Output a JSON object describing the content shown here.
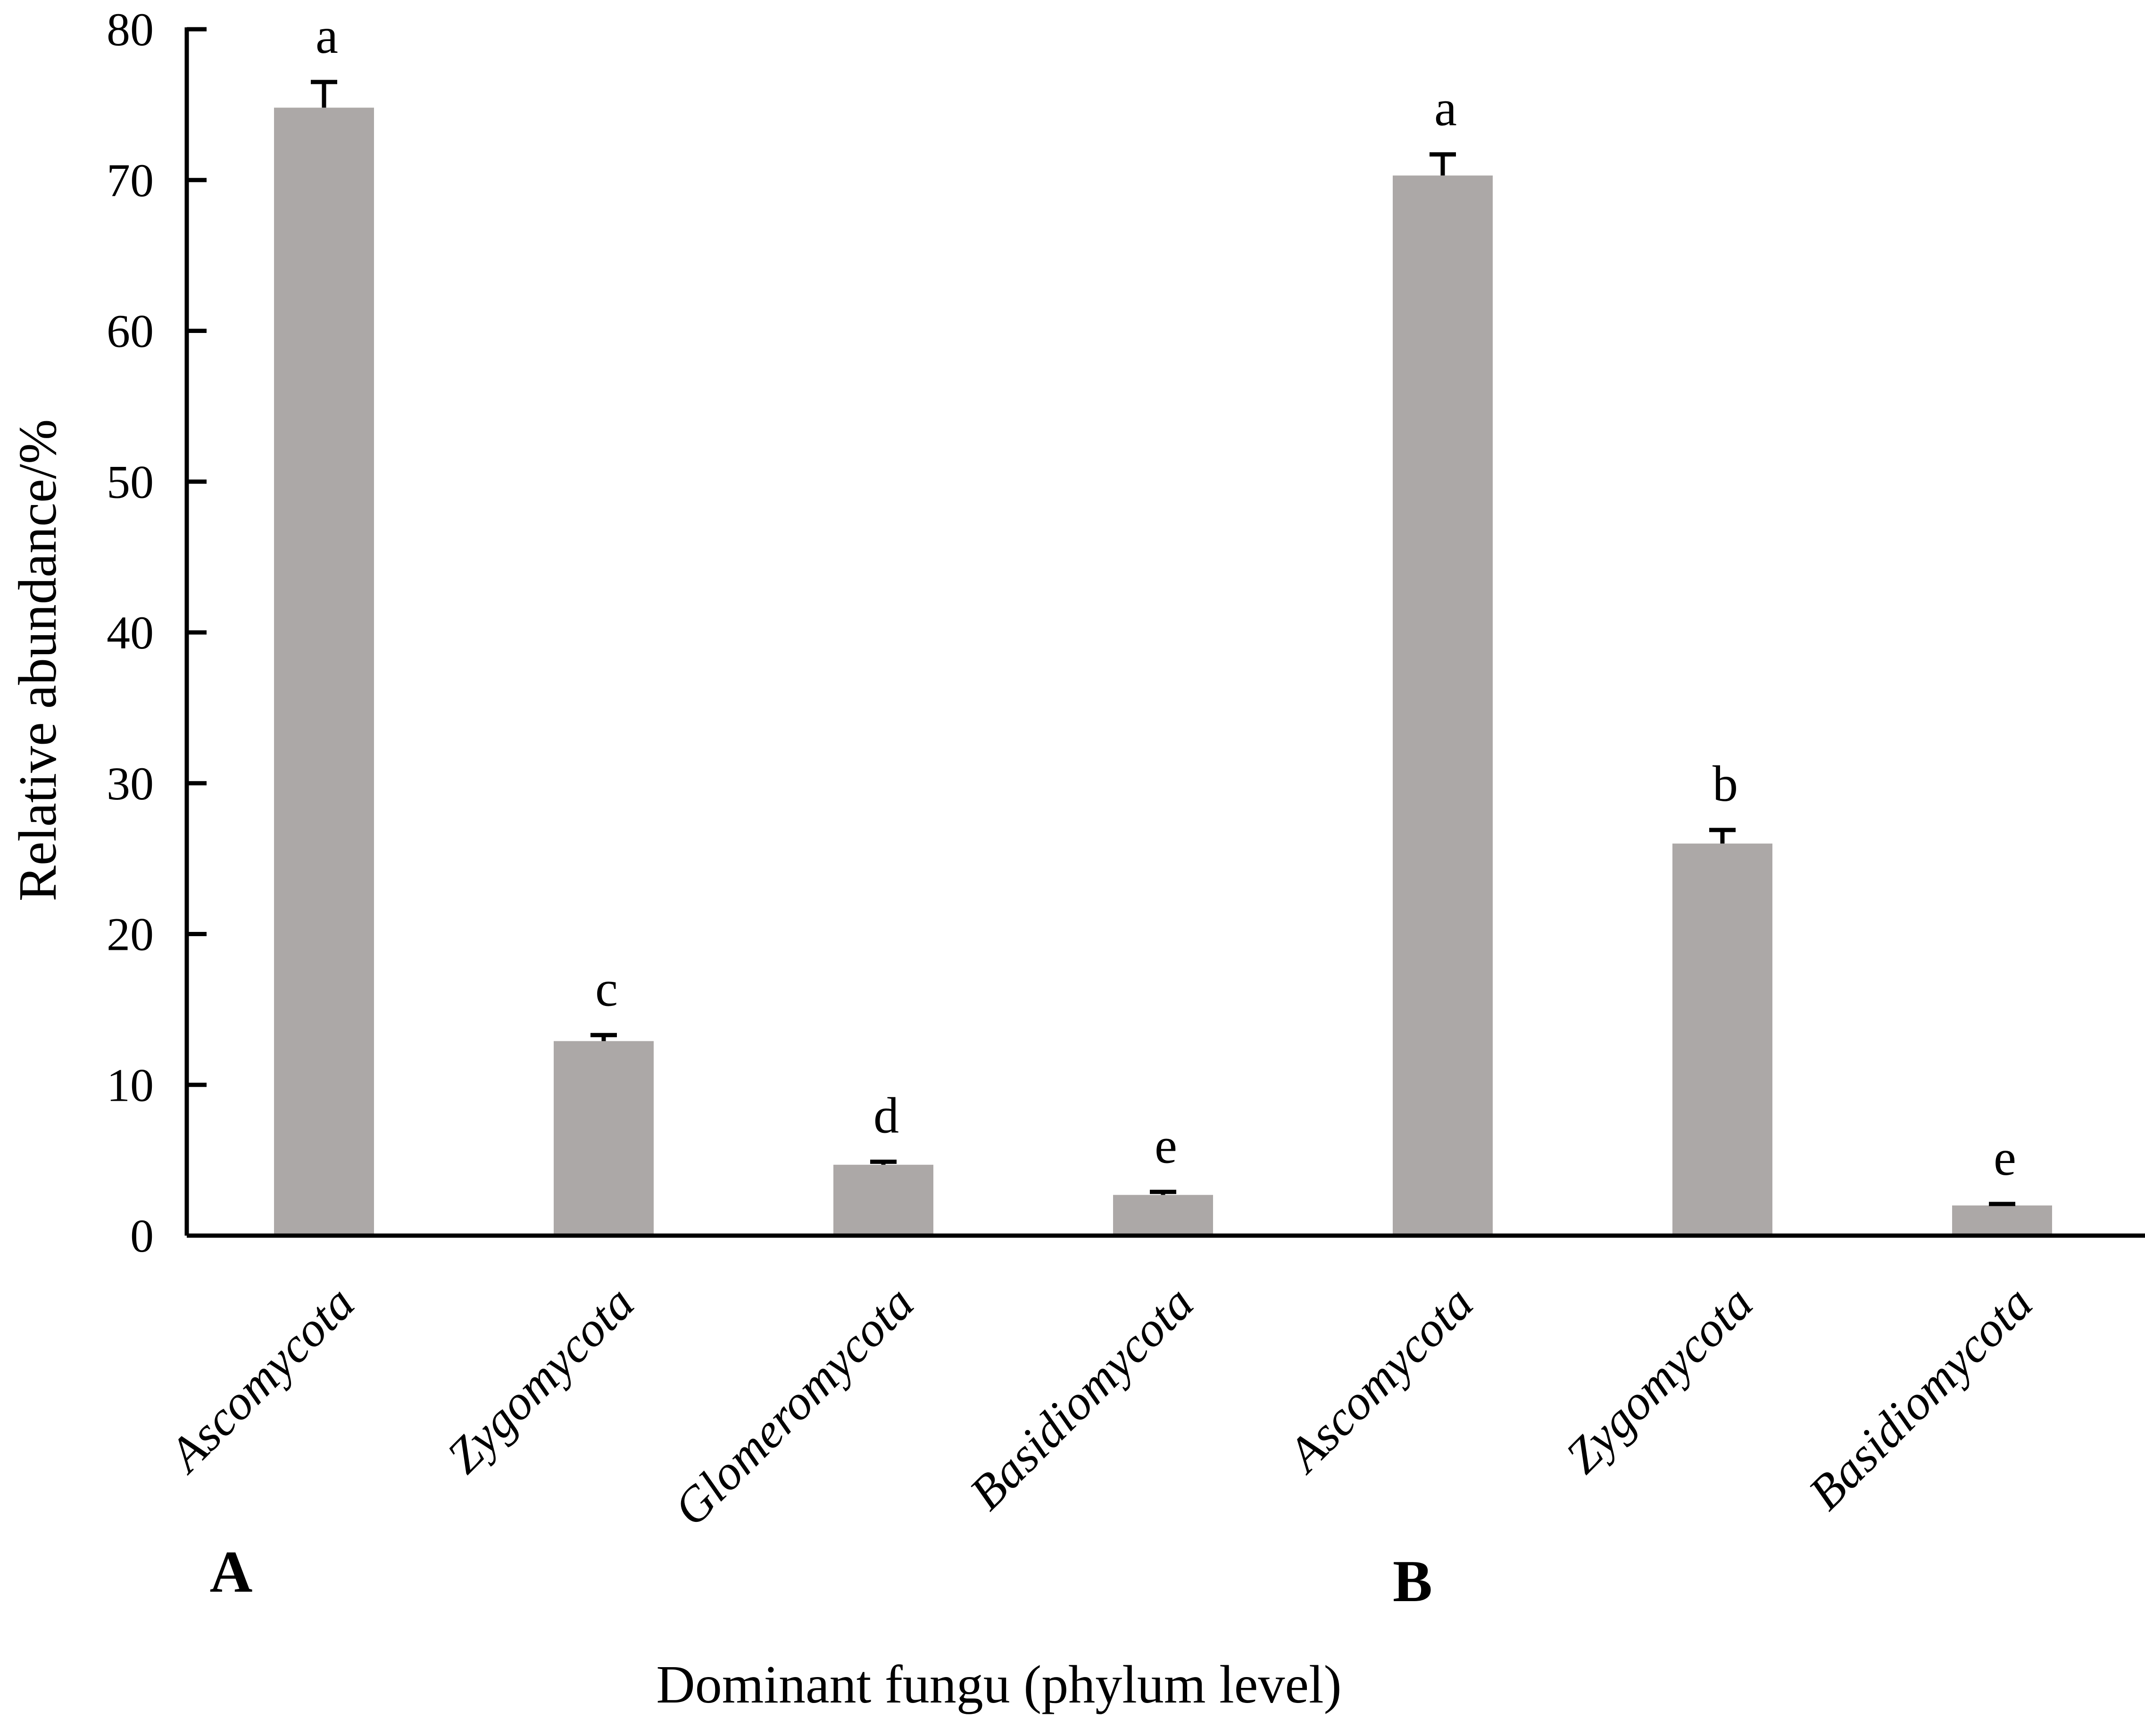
{
  "chart_data": {
    "type": "bar",
    "ylabel": "Relative abundance/%",
    "xlabel": "Dominant fungu (phylum level)",
    "ylim": [
      0,
      80
    ],
    "yticks": [
      0,
      10,
      20,
      30,
      40,
      50,
      60,
      70,
      80
    ],
    "grid": false,
    "bar_color": "#aca8a7",
    "groups": [
      "A",
      "B"
    ],
    "categories": [
      "Ascomycota",
      "Zygomycota",
      "Glomeromycota",
      "Basidiomycota",
      "Ascomycota",
      "Zygomycota",
      "Basidiomycota"
    ],
    "category_groups": [
      "A",
      "A",
      "A",
      "A",
      "B",
      "B",
      "B"
    ],
    "values": [
      74.8,
      12.9,
      4.7,
      2.7,
      70.3,
      26.0,
      2.0
    ],
    "errors": [
      1.7,
      0.4,
      0.2,
      0.2,
      1.4,
      0.9,
      0.1
    ],
    "significance": [
      "a",
      "c",
      "d",
      "e",
      "a",
      "b",
      "e"
    ]
  }
}
